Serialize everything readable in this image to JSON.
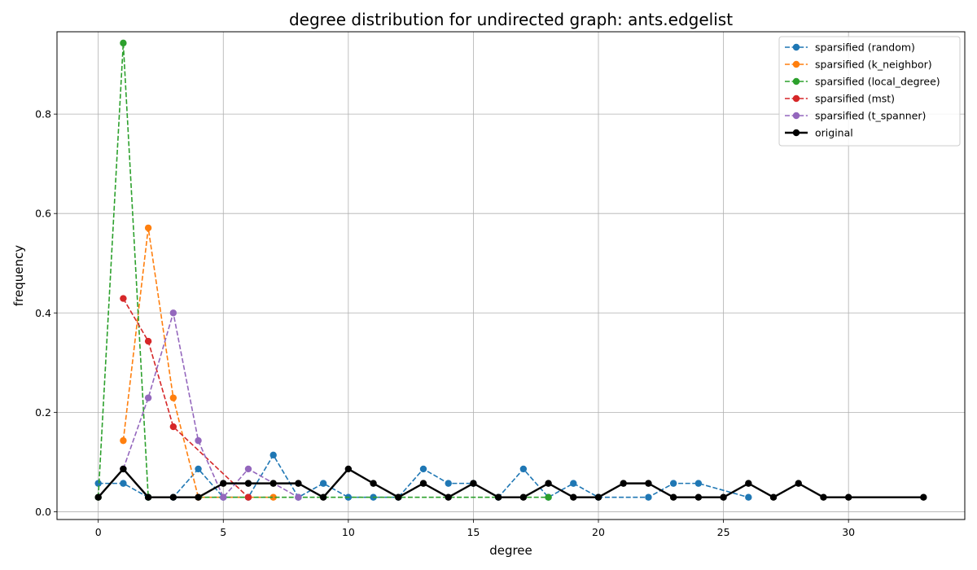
{
  "chart_data": {
    "type": "line",
    "title": "degree distribution for undirected graph: ants.edgelist",
    "xlabel": "degree",
    "ylabel": "frequency",
    "xlim": [
      -1.65,
      34.65
    ],
    "ylim": [
      -0.0157,
      0.9657
    ],
    "xticks": [
      0,
      5,
      10,
      15,
      20,
      25,
      30
    ],
    "yticks": [
      0.0,
      0.2,
      0.4,
      0.6,
      0.8
    ],
    "ytick_labels": [
      "0.0",
      "0.2",
      "0.4",
      "0.6",
      "0.8"
    ],
    "grid": true,
    "legend_position": "top-right",
    "series": [
      {
        "name": "sparsified (random)",
        "color": "#1f77b4",
        "style": "dashed",
        "x": [
          0,
          1,
          2,
          3,
          4,
          5,
          6,
          7,
          8,
          9,
          10,
          11,
          12,
          13,
          14,
          15,
          16,
          17,
          18,
          19,
          20,
          22,
          23,
          24,
          26
        ],
        "y": [
          0.057,
          0.057,
          0.029,
          0.029,
          0.086,
          0.029,
          0.029,
          0.114,
          0.029,
          0.057,
          0.029,
          0.029,
          0.029,
          0.086,
          0.057,
          0.057,
          0.029,
          0.086,
          0.029,
          0.057,
          0.029,
          0.029,
          0.057,
          0.057,
          0.029
        ]
      },
      {
        "name": "sparsified (k_neighbor)",
        "color": "#ff7f0e",
        "style": "dashed",
        "x": [
          1,
          2,
          3,
          4,
          7
        ],
        "y": [
          0.143,
          0.571,
          0.229,
          0.029,
          0.029
        ]
      },
      {
        "name": "sparsified (local_degree)",
        "color": "#2ca02c",
        "style": "dashed",
        "x": [
          0,
          1,
          2,
          18
        ],
        "y": [
          0.029,
          0.943,
          0.029,
          0.029
        ]
      },
      {
        "name": "sparsified (mst)",
        "color": "#d62728",
        "style": "dashed",
        "x": [
          1,
          2,
          3,
          6
        ],
        "y": [
          0.429,
          0.343,
          0.171,
          0.029
        ]
      },
      {
        "name": "sparsified (t_spanner)",
        "color": "#9467bd",
        "style": "dashed",
        "x": [
          1,
          2,
          3,
          4,
          5,
          6,
          8
        ],
        "y": [
          0.086,
          0.229,
          0.4,
          0.143,
          0.029,
          0.086,
          0.029
        ]
      },
      {
        "name": "original",
        "color": "#000000",
        "style": "solid",
        "x": [
          0,
          1,
          2,
          3,
          4,
          5,
          6,
          7,
          8,
          9,
          10,
          11,
          12,
          13,
          14,
          15,
          16,
          17,
          18,
          19,
          20,
          21,
          22,
          23,
          24,
          25,
          26,
          27,
          28,
          29,
          30,
          33
        ],
        "y": [
          0.029,
          0.086,
          0.029,
          0.029,
          0.029,
          0.057,
          0.057,
          0.057,
          0.057,
          0.029,
          0.086,
          0.057,
          0.029,
          0.057,
          0.029,
          0.057,
          0.029,
          0.029,
          0.057,
          0.029,
          0.029,
          0.057,
          0.057,
          0.029,
          0.029,
          0.029,
          0.057,
          0.029,
          0.057,
          0.029,
          0.029,
          0.029
        ]
      }
    ]
  }
}
